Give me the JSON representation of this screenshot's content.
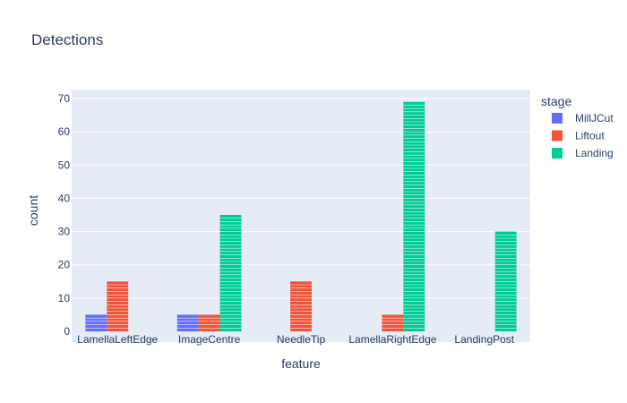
{
  "chart_data": {
    "type": "bar",
    "title": "Detections",
    "xlabel": "feature",
    "ylabel": "count",
    "categories": [
      "LamellaLeftEdge",
      "ImageCentre",
      "NeedleTip",
      "LamellaRightEdge",
      "LandingPost"
    ],
    "series": [
      {
        "name": "MillJCut",
        "color": "#636efa",
        "values": [
          5,
          5,
          0,
          0,
          0
        ]
      },
      {
        "name": "Liftout",
        "color": "#ef553b",
        "values": [
          15,
          5,
          15,
          5,
          0
        ]
      },
      {
        "name": "Landing",
        "color": "#00cc96",
        "values": [
          0,
          35,
          0,
          69,
          30
        ]
      }
    ],
    "ylim": [
      0,
      73
    ],
    "yticks": [
      0,
      10,
      20,
      30,
      40,
      50,
      60,
      70
    ],
    "barmode": "group",
    "grid": true,
    "legend": {
      "title": "stage",
      "position": "right"
    }
  }
}
